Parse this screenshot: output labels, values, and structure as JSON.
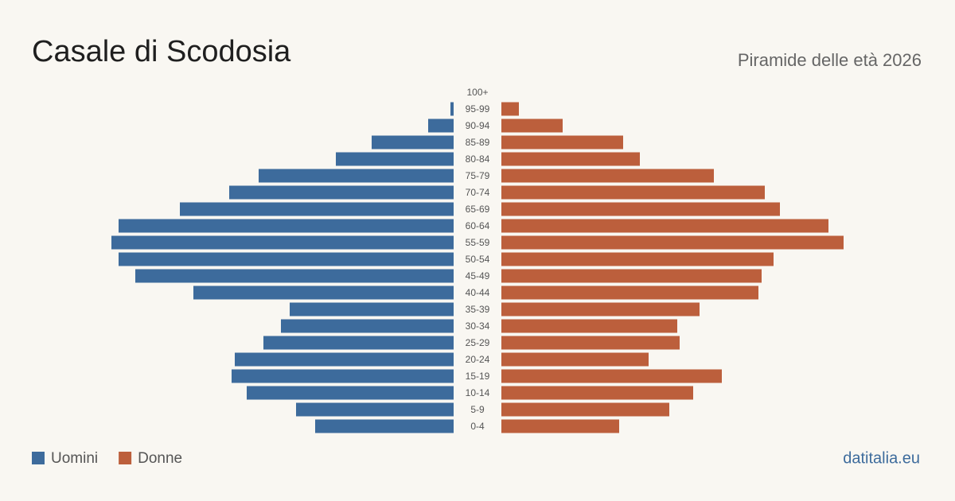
{
  "chart_data": {
    "type": "pyramid",
    "title": "Casale di Scodosia",
    "subtitle": "Piramide delle età 2026",
    "source": "datitalia.eu",
    "categories": [
      "0-4",
      "5-9",
      "10-14",
      "15-19",
      "20-24",
      "25-29",
      "30-34",
      "35-39",
      "40-44",
      "45-49",
      "50-54",
      "55-59",
      "60-64",
      "65-69",
      "70-74",
      "75-79",
      "80-84",
      "85-89",
      "90-94",
      "95-99",
      "100+"
    ],
    "series": [
      {
        "name": "Uomini",
        "color": "#3d6b9c",
        "values": [
          174,
          198,
          260,
          279,
          275,
          239,
          217,
          206,
          327,
          400,
          421,
          430,
          421,
          344,
          282,
          245,
          148,
          103,
          32,
          4,
          0
        ]
      },
      {
        "name": "Donne",
        "color": "#bc5f3c",
        "values": [
          148,
          211,
          241,
          277,
          185,
          224,
          221,
          249,
          323,
          327,
          342,
          430,
          411,
          350,
          331,
          267,
          174,
          153,
          77,
          22,
          0
        ]
      }
    ]
  }
}
